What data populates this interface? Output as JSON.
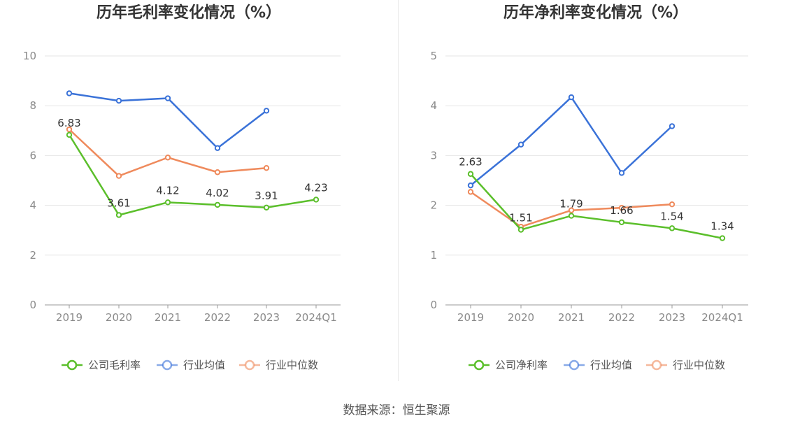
{
  "colors": {
    "company": "#5bbf2b",
    "avg": "#3a72d8",
    "median": "#ef8a5c",
    "grid": "#e6e6e6",
    "axis": "#999999"
  },
  "source": "数据来源：恒生聚源",
  "chart_data": [
    {
      "type": "line",
      "title": "历年毛利率变化情况（%）",
      "categories": [
        "2019",
        "2020",
        "2021",
        "2022",
        "2023",
        "2024Q1"
      ],
      "ylim": [
        0,
        10
      ],
      "yticks": [
        0,
        2,
        4,
        6,
        8,
        10
      ],
      "grid": true,
      "legend_position": "bottom",
      "series": [
        {
          "name": "公司毛利率",
          "color": "#5bbf2b",
          "values": [
            6.83,
            3.61,
            4.12,
            4.02,
            3.91,
            4.23
          ],
          "labels": [
            "6.83",
            "3.61",
            "4.12",
            "4.02",
            "3.91",
            "4.23"
          ]
        },
        {
          "name": "行业均值",
          "color": "#3a72d8",
          "values": [
            8.5,
            8.2,
            8.3,
            6.3,
            7.8,
            null
          ]
        },
        {
          "name": "行业中位数",
          "color": "#ef8a5c",
          "values": [
            7.05,
            5.18,
            5.92,
            5.33,
            5.5,
            null
          ]
        }
      ]
    },
    {
      "type": "line",
      "title": "历年净利率变化情况（%）",
      "categories": [
        "2019",
        "2020",
        "2021",
        "2022",
        "2023",
        "2024Q1"
      ],
      "ylim": [
        0,
        5
      ],
      "yticks": [
        0,
        1,
        2,
        3,
        4,
        5
      ],
      "grid": true,
      "legend_position": "bottom",
      "series": [
        {
          "name": "公司净利率",
          "color": "#5bbf2b",
          "values": [
            2.63,
            1.51,
            1.79,
            1.66,
            1.54,
            1.34
          ],
          "labels": [
            "2.63",
            "1.51",
            "1.79",
            "1.66",
            "1.54",
            "1.34"
          ]
        },
        {
          "name": "行业均值",
          "color": "#3a72d8",
          "values": [
            2.4,
            3.22,
            4.17,
            2.65,
            3.59,
            null
          ]
        },
        {
          "name": "行业中位数",
          "color": "#ef8a5c",
          "values": [
            2.27,
            1.57,
            1.9,
            1.95,
            2.02,
            null
          ]
        }
      ]
    }
  ]
}
